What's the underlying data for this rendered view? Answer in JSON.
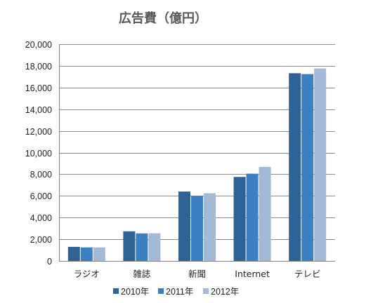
{
  "chart_data": {
    "type": "bar",
    "title": "広告費（億円）",
    "xlabel": "",
    "ylabel": "",
    "categories": [
      "ラジオ",
      "雑誌",
      "新聞",
      "Internet",
      "テレビ"
    ],
    "series": [
      {
        "name": "2010年",
        "color": "#2F6395",
        "values": [
          1300,
          2730,
          6400,
          7750,
          17320
        ]
      },
      {
        "name": "2011年",
        "color": "#3A80C2",
        "values": [
          1250,
          2540,
          6000,
          8050,
          17240
        ]
      },
      {
        "name": "2012年",
        "color": "#A3B9D7",
        "values": [
          1250,
          2550,
          6250,
          8680,
          17760
        ]
      }
    ],
    "ylim": [
      0,
      20000
    ],
    "yticks": [
      0,
      2000,
      4000,
      6000,
      8000,
      10000,
      12000,
      14000,
      16000,
      18000,
      20000
    ],
    "ytick_labels": [
      "0",
      "2,000",
      "4,000",
      "6,000",
      "8,000",
      "10,000",
      "12,000",
      "14,000",
      "16,000",
      "18,000",
      "20,000"
    ],
    "grid": true,
    "legend_position": "bottom"
  }
}
